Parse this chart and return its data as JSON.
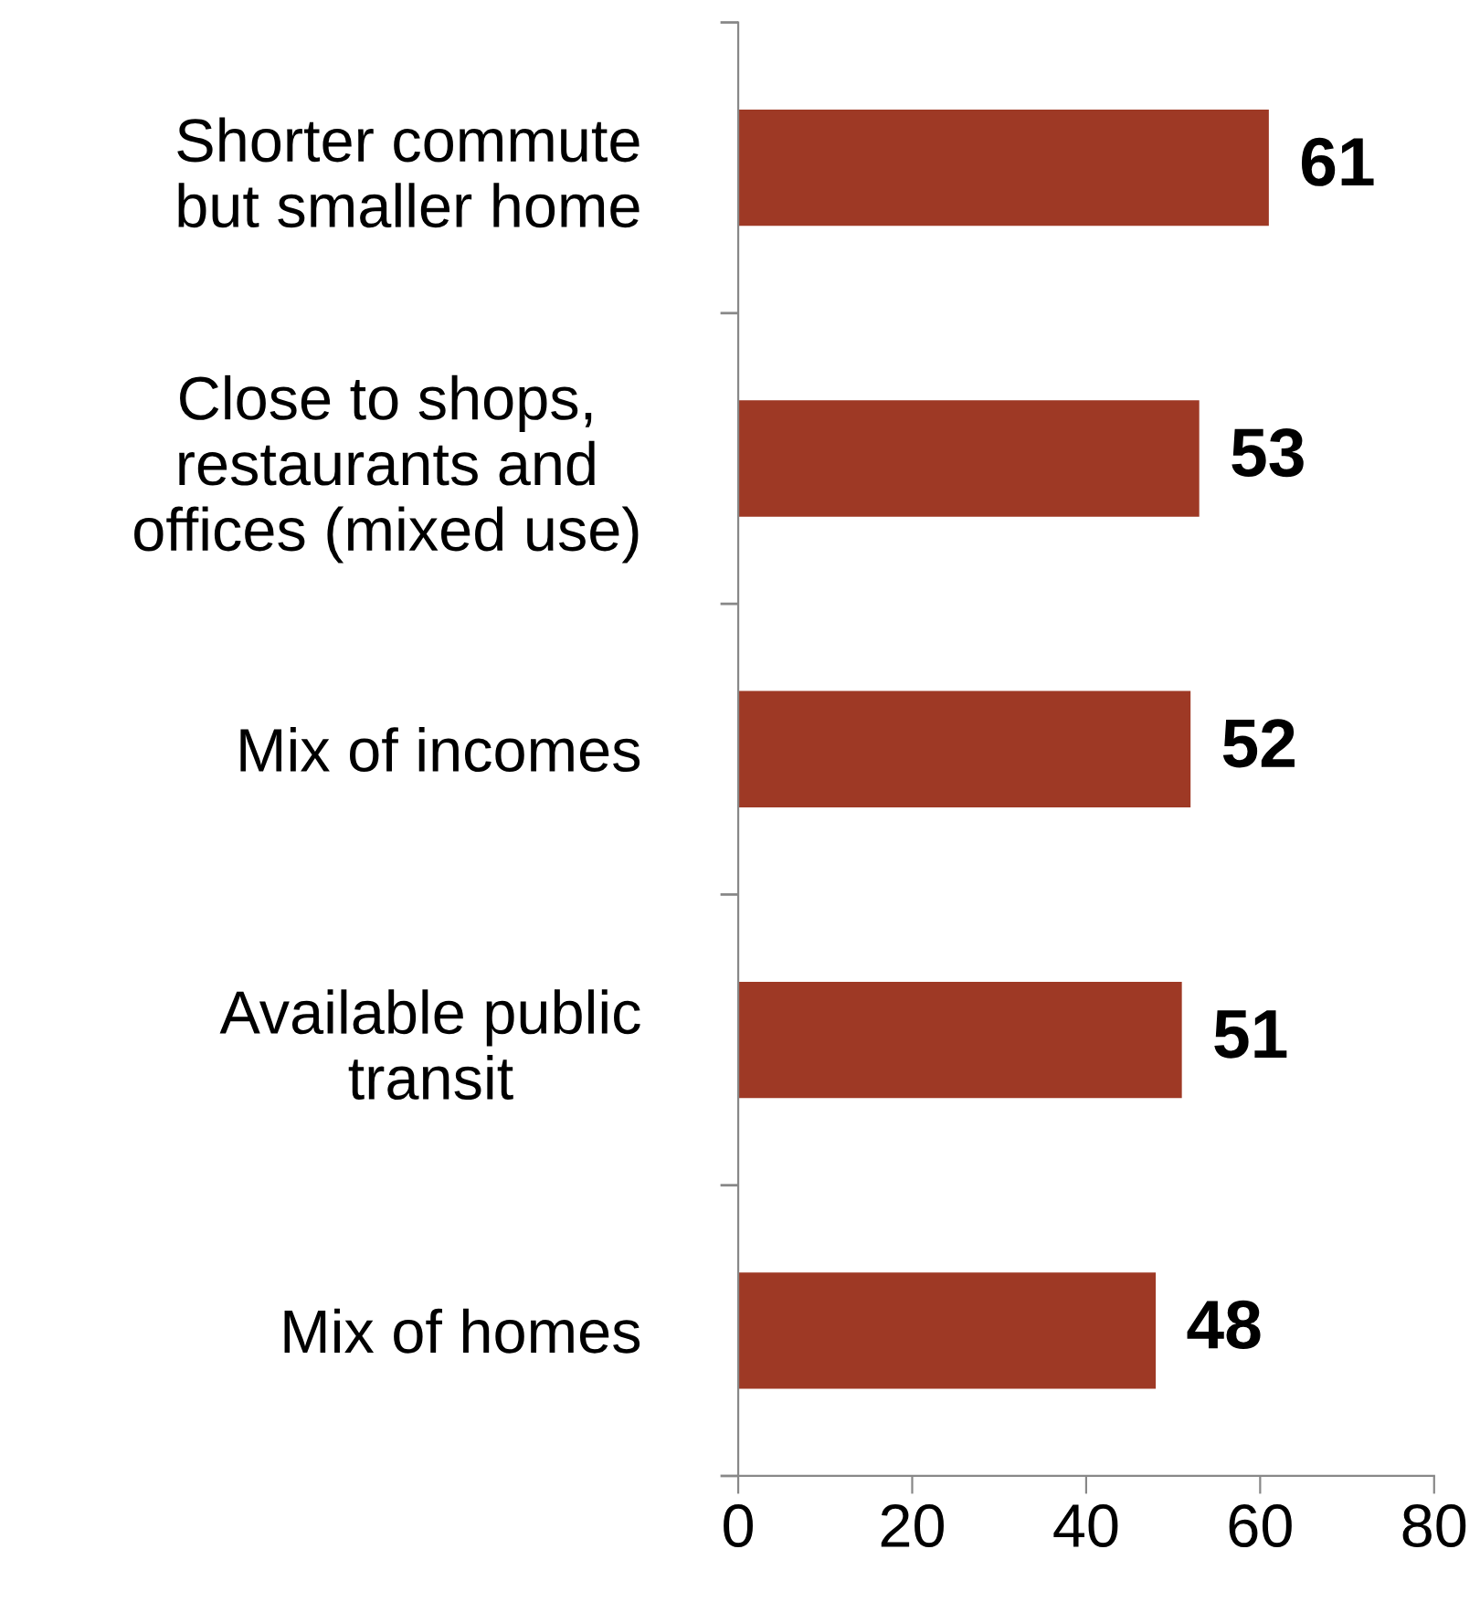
{
  "chart_data": {
    "type": "bar",
    "orientation": "horizontal",
    "categories": [
      "Shorter commute\nbut smaller home",
      "Close to shops,\nrestaurants and\noffices (mixed use)",
      "Mix of incomes",
      "Available public\ntransit",
      "Mix of homes"
    ],
    "values": [
      61,
      53,
      52,
      51,
      48
    ],
    "color": "#9e3925",
    "xlim": [
      0,
      80
    ],
    "xticks": [
      0,
      20,
      40,
      60,
      80
    ],
    "grid": false,
    "data_labels": true
  }
}
